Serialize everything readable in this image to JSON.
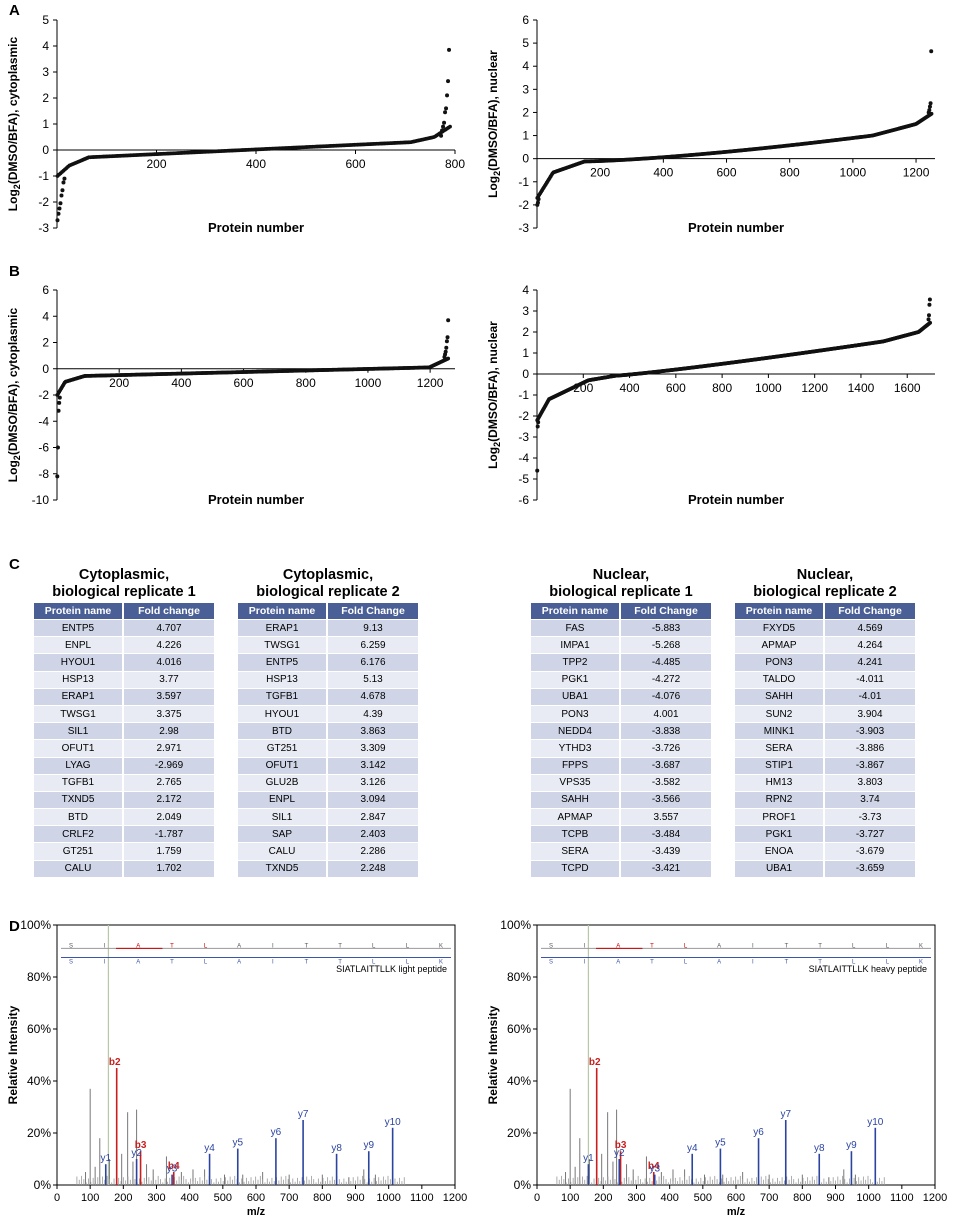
{
  "panel_letters": {
    "A": "A",
    "B": "B",
    "C": "C",
    "D": "D"
  },
  "chart_data": [
    {
      "id": "A1",
      "type": "scatter",
      "ylabel": "Log2(DMSO/BFA), cytoplasmic",
      "xlabel": "Protein number",
      "xlim": [
        0,
        800
      ],
      "ylim": [
        -3,
        5
      ],
      "xticks": [
        "200",
        "400",
        "600",
        "800"
      ],
      "yticks": [
        "-3",
        "-2",
        "-1",
        "0",
        "1",
        "2",
        "3",
        "4",
        "5"
      ],
      "n": 790,
      "outliers_high": [
        0.55,
        0.75,
        0.9,
        1.05,
        1.45,
        1.6,
        2.1,
        2.65,
        3.85
      ],
      "outliers_low": [
        -2.7,
        -2.45,
        -2.25,
        -2.05,
        -1.75,
        -1.55,
        -1.25,
        -1.1
      ]
    },
    {
      "id": "A2",
      "type": "scatter",
      "ylabel": "Log2(DMSO/BFA), nuclear",
      "xlabel": "Protein number",
      "xlim": [
        0,
        1260
      ],
      "ylim": [
        -3,
        6
      ],
      "xticks": [
        "200",
        "400",
        "600",
        "800",
        "1000",
        "1200"
      ],
      "yticks": [
        "-3",
        "-2",
        "-1",
        "0",
        "1",
        "2",
        "3",
        "4",
        "5",
        "6"
      ],
      "n": 1250,
      "outliers_high": [
        2.0,
        2.1,
        2.25,
        2.4,
        4.65
      ],
      "outliers_low": [
        -2.0,
        -1.9,
        -1.75
      ]
    },
    {
      "id": "B1",
      "type": "scatter",
      "ylabel": "Log2(DMSO/BFA), cytoplasmic",
      "xlabel": "Protein number",
      "xlim": [
        0,
        1280
      ],
      "ylim": [
        -10,
        6
      ],
      "xticks": [
        "200",
        "400",
        "600",
        "800",
        "1000",
        "1200"
      ],
      "yticks": [
        "-10",
        "-8",
        "-6",
        "-4",
        "-2",
        "0",
        "2",
        "4",
        "6"
      ],
      "n": 1260,
      "outliers_high": [
        0.9,
        1.1,
        1.3,
        1.6,
        2.1,
        2.4,
        3.7
      ],
      "outliers_low": [
        -8.2,
        -6.0,
        -3.2,
        -2.6,
        -2.2
      ]
    },
    {
      "id": "B2",
      "type": "scatter",
      "ylabel": "Log2(DMSO/BFA), nuclear",
      "xlabel": "Protein number",
      "xlim": [
        0,
        1720
      ],
      "ylim": [
        -6,
        4
      ],
      "xticks": [
        "200",
        "400",
        "600",
        "800",
        "1000",
        "1200",
        "1400",
        "1600"
      ],
      "yticks": [
        "-6",
        "-5",
        "-4",
        "-3",
        "-2",
        "-1",
        "0",
        "1",
        "2",
        "3",
        "4"
      ],
      "n": 1700,
      "outliers_high": [
        2.6,
        2.8,
        3.3,
        3.55
      ],
      "outliers_low": [
        -4.6,
        -2.5,
        -2.3
      ]
    },
    {
      "id": "D1",
      "type": "bar",
      "spectrum": true,
      "ylabel": "Relative Intensity",
      "xlabel": "m/z",
      "xlim": [
        0,
        1200
      ],
      "ylim": [
        0,
        100
      ],
      "xticks": [
        "0",
        "100",
        "200",
        "300",
        "400",
        "500",
        "600",
        "700",
        "800",
        "900",
        "1000",
        "1100",
        "1200"
      ],
      "yticks": [
        "0%",
        "20%",
        "40%",
        "60%",
        "80%",
        "100%"
      ],
      "annotation": "SIATLAITTLLK light peptide",
      "peptide": [
        "S",
        "I",
        "A",
        "T",
        "L",
        "A",
        "I",
        "T",
        "T",
        "L",
        "L",
        "K"
      ],
      "b_peaks": [
        {
          "label": "b2",
          "mz": 180,
          "h": 45
        },
        {
          "label": "b3",
          "mz": 252,
          "h": 13
        },
        {
          "label": "b4",
          "mz": 352,
          "h": 5
        }
      ],
      "y_peaks": [
        {
          "label": "y1",
          "mz": 147,
          "h": 8
        },
        {
          "label": "y2",
          "mz": 240,
          "h": 10
        },
        {
          "label": "y3",
          "mz": 347,
          "h": 4
        },
        {
          "label": "y4",
          "mz": 460,
          "h": 12
        },
        {
          "label": "y5",
          "mz": 545,
          "h": 14
        },
        {
          "label": "y6",
          "mz": 660,
          "h": 18
        },
        {
          "label": "y7",
          "mz": 742,
          "h": 25
        },
        {
          "label": "y8",
          "mz": 843,
          "h": 12
        },
        {
          "label": "y9",
          "mz": 940,
          "h": 13
        },
        {
          "label": "y10",
          "mz": 1012,
          "h": 22
        }
      ],
      "grey_peaks": [
        [
          86,
          5
        ],
        [
          100,
          37
        ],
        [
          115,
          7
        ],
        [
          129,
          18
        ],
        [
          158,
          10
        ],
        [
          195,
          12
        ],
        [
          213,
          28
        ],
        [
          229,
          9
        ],
        [
          240,
          29
        ],
        [
          270,
          8
        ],
        [
          290,
          6
        ],
        [
          330,
          11
        ],
        [
          375,
          5
        ],
        [
          410,
          6
        ],
        [
          445,
          6
        ],
        [
          505,
          4
        ],
        [
          560,
          4
        ],
        [
          620,
          5
        ],
        [
          700,
          4
        ],
        [
          800,
          4
        ],
        [
          880,
          3
        ],
        [
          925,
          6
        ],
        [
          960,
          4
        ]
      ],
      "marker_mz": 155
    },
    {
      "id": "D2",
      "type": "bar",
      "spectrum": true,
      "ylabel": "Relative Intensity",
      "xlabel": "m/z",
      "xlim": [
        0,
        1200
      ],
      "ylim": [
        0,
        100
      ],
      "xticks": [
        "0",
        "100",
        "200",
        "300",
        "400",
        "500",
        "600",
        "700",
        "800",
        "900",
        "1000",
        "1100",
        "1200"
      ],
      "yticks": [
        "0%",
        "20%",
        "40%",
        "60%",
        "80%",
        "100%"
      ],
      "annotation": "SIATLAITTLLK heavy peptide",
      "peptide": [
        "S",
        "I",
        "A",
        "T",
        "L",
        "A",
        "I",
        "T",
        "T",
        "L",
        "L",
        "K"
      ],
      "b_peaks": [
        {
          "label": "b2",
          "mz": 180,
          "h": 45
        },
        {
          "label": "b3",
          "mz": 252,
          "h": 13
        },
        {
          "label": "b4",
          "mz": 352,
          "h": 5
        }
      ],
      "y_peaks": [
        {
          "label": "y1",
          "mz": 155,
          "h": 8
        },
        {
          "label": "y2",
          "mz": 248,
          "h": 10
        },
        {
          "label": "y3",
          "mz": 355,
          "h": 4
        },
        {
          "label": "y4",
          "mz": 468,
          "h": 12
        },
        {
          "label": "y5",
          "mz": 553,
          "h": 14
        },
        {
          "label": "y6",
          "mz": 668,
          "h": 18
        },
        {
          "label": "y7",
          "mz": 750,
          "h": 25
        },
        {
          "label": "y8",
          "mz": 851,
          "h": 12
        },
        {
          "label": "y9",
          "mz": 948,
          "h": 13
        },
        {
          "label": "y10",
          "mz": 1020,
          "h": 22
        }
      ],
      "grey_peaks": [
        [
          86,
          5
        ],
        [
          100,
          37
        ],
        [
          115,
          7
        ],
        [
          129,
          18
        ],
        [
          158,
          10
        ],
        [
          195,
          12
        ],
        [
          213,
          28
        ],
        [
          229,
          9
        ],
        [
          240,
          29
        ],
        [
          270,
          8
        ],
        [
          290,
          6
        ],
        [
          330,
          11
        ],
        [
          375,
          5
        ],
        [
          410,
          6
        ],
        [
          445,
          6
        ],
        [
          505,
          4
        ],
        [
          560,
          4
        ],
        [
          620,
          5
        ],
        [
          700,
          4
        ],
        [
          800,
          4
        ],
        [
          880,
          3
        ],
        [
          925,
          6
        ],
        [
          960,
          4
        ]
      ],
      "marker_mz": 155
    }
  ],
  "tables": [
    {
      "title1": "Cytoplasmic,",
      "title2": "biological replicate 1",
      "col1": "Protein name",
      "col2": "Fold change",
      "rows": [
        [
          "ENTP5",
          "4.707"
        ],
        [
          "ENPL",
          "4.226"
        ],
        [
          "HYOU1",
          "4.016"
        ],
        [
          "HSP13",
          "3.77"
        ],
        [
          "ERAP1",
          "3.597"
        ],
        [
          "TWSG1",
          "3.375"
        ],
        [
          "SIL1",
          "2.98"
        ],
        [
          "OFUT1",
          "2.971"
        ],
        [
          "LYAG",
          "-2.969"
        ],
        [
          "TGFB1",
          "2.765"
        ],
        [
          "TXND5",
          "2.172"
        ],
        [
          "BTD",
          "2.049"
        ],
        [
          "CRLF2",
          "-1.787"
        ],
        [
          "GT251",
          "1.759"
        ],
        [
          "CALU",
          "1.702"
        ]
      ]
    },
    {
      "title1": "Cytoplasmic,",
      "title2": "biological replicate 2",
      "col1": "Protein name",
      "col2": "Fold Change",
      "rows": [
        [
          "ERAP1",
          "9.13"
        ],
        [
          "TWSG1",
          "6.259"
        ],
        [
          "ENTP5",
          "6.176"
        ],
        [
          "HSP13",
          "5.13"
        ],
        [
          "TGFB1",
          "4.678"
        ],
        [
          "HYOU1",
          "4.39"
        ],
        [
          "BTD",
          "3.863"
        ],
        [
          "GT251",
          "3.309"
        ],
        [
          "OFUT1",
          "3.142"
        ],
        [
          "GLU2B",
          "3.126"
        ],
        [
          "ENPL",
          "3.094"
        ],
        [
          "SIL1",
          "2.847"
        ],
        [
          "SAP",
          "2.403"
        ],
        [
          "CALU",
          "2.286"
        ],
        [
          "TXND5",
          "2.248"
        ]
      ]
    },
    {
      "title1": "Nuclear,",
      "title2": "biological replicate 1",
      "col1": "Protein name",
      "col2": "Fold Change",
      "rows": [
        [
          "FAS",
          "-5.883"
        ],
        [
          "IMPA1",
          "-5.268"
        ],
        [
          "TPP2",
          "-4.485"
        ],
        [
          "PGK1",
          "-4.272"
        ],
        [
          "UBA1",
          "-4.076"
        ],
        [
          "PON3",
          "4.001"
        ],
        [
          "NEDD4",
          "-3.838"
        ],
        [
          "YTHD3",
          "-3.726"
        ],
        [
          "FPPS",
          "-3.687"
        ],
        [
          "VPS35",
          "-3.582"
        ],
        [
          "SAHH",
          "-3.566"
        ],
        [
          "APMAP",
          "3.557"
        ],
        [
          "TCPB",
          "-3.484"
        ],
        [
          "SERA",
          "-3.439"
        ],
        [
          "TCPD",
          "-3.421"
        ]
      ]
    },
    {
      "title1": "Nuclear,",
      "title2": "biological replicate 2",
      "col1": "Protein name",
      "col2": "Fold Change",
      "rows": [
        [
          "FXYD5",
          "4.569"
        ],
        [
          "APMAP",
          "4.264"
        ],
        [
          "PON3",
          "4.241"
        ],
        [
          "TALDO",
          "-4.011"
        ],
        [
          "SAHH",
          "-4.01"
        ],
        [
          "SUN2",
          "3.904"
        ],
        [
          "MINK1",
          "-3.903"
        ],
        [
          "SERA",
          "-3.886"
        ],
        [
          "STIP1",
          "-3.867"
        ],
        [
          "HM13",
          "3.803"
        ],
        [
          "RPN2",
          "3.74"
        ],
        [
          "PROF1",
          "-3.73"
        ],
        [
          "PGK1",
          "-3.727"
        ],
        [
          "ENOA",
          "-3.679"
        ],
        [
          "UBA1",
          "-3.659"
        ]
      ]
    }
  ]
}
